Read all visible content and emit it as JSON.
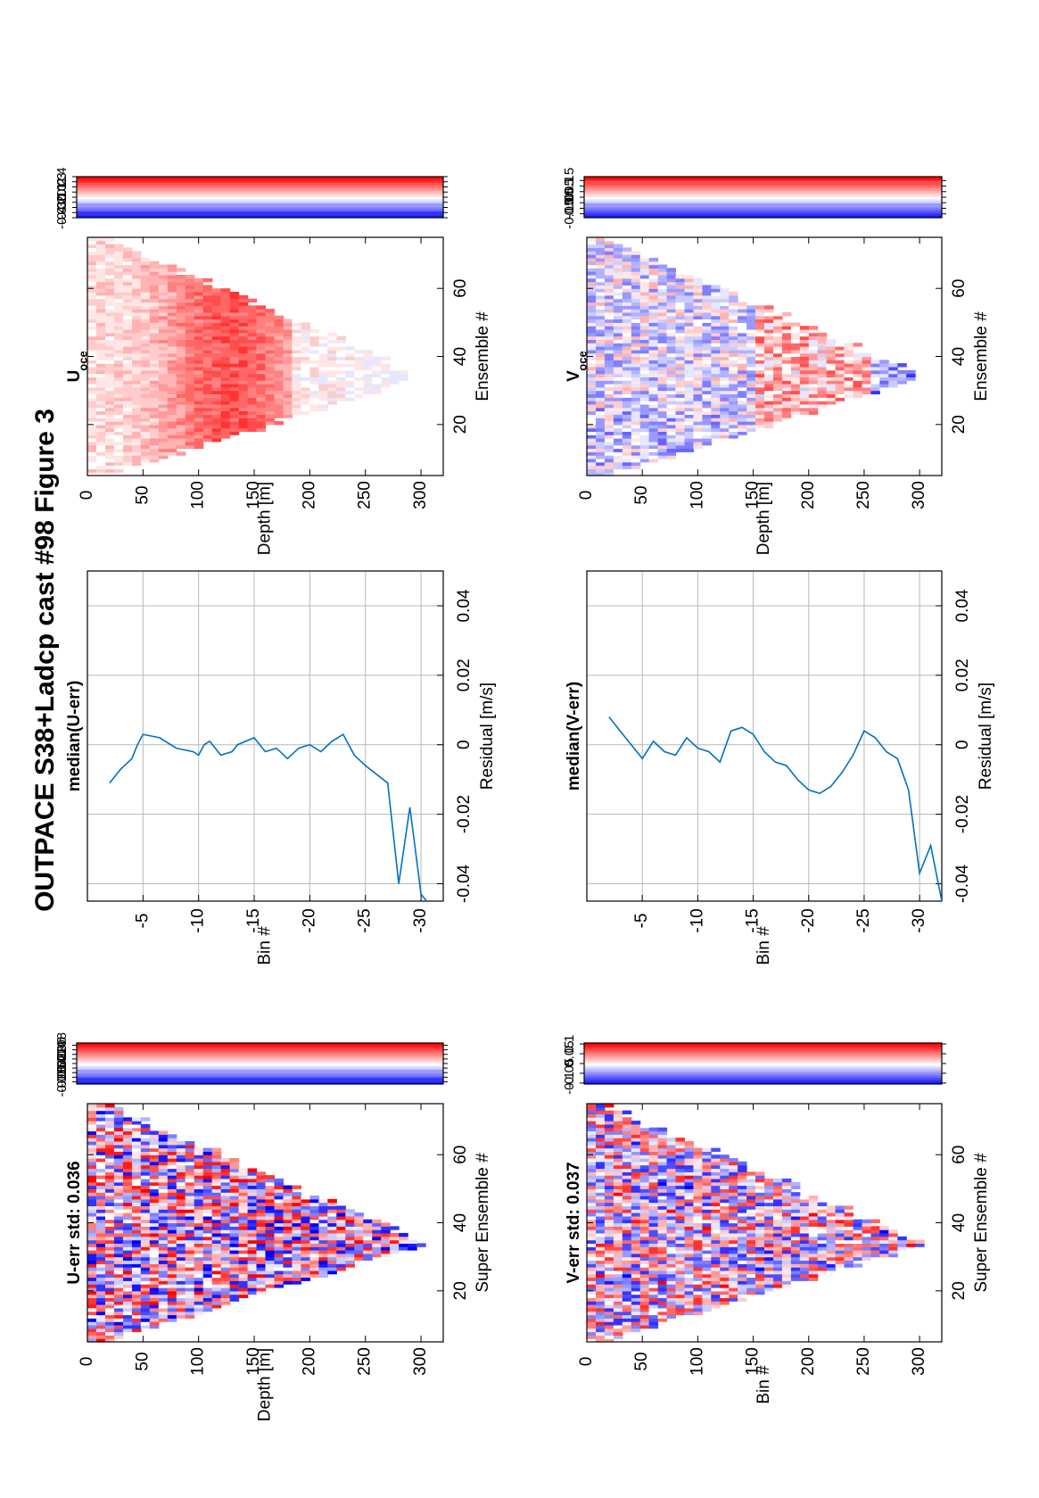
{
  "figure_title": "OUTPACE S38+Ladcp cast #98  Figure 3",
  "panels": {
    "u_err": {
      "title": "U-err std: 0.036",
      "xlabel": "Super Ensemble #",
      "ylabel": "Depth [m]"
    },
    "v_err": {
      "title": "V-err std: 0.037",
      "xlabel": "Super Ensemble #",
      "ylabel": "Bin #"
    },
    "u_med": {
      "title": "median(U-err)",
      "xlabel": "Residual [m/s]",
      "ylabel": "Bin #"
    },
    "v_med": {
      "title": "median(V-err)",
      "xlabel": "Residual [m/s]",
      "ylabel": "Bin #"
    },
    "u_oce": {
      "title": "U",
      "title_sub": "oce",
      "xlabel": "Ensemble #",
      "ylabel": "Depth [m]"
    },
    "v_oce": {
      "title": "V",
      "title_sub": "oce",
      "xlabel": "Ensemble #",
      "ylabel": "Depth [m]"
    }
  },
  "colorbars": {
    "u_err": {
      "ticks": [
        "0.08",
        "0.06",
        "0.04",
        "0.02",
        "0",
        "-0.02",
        "-0.04",
        "-0.06",
        "-0.08"
      ],
      "values": [
        0.08,
        0.06,
        0.04,
        0.02,
        0,
        -0.02,
        -0.04,
        -0.06,
        -0.08
      ],
      "lim": [
        -0.09,
        0.09
      ]
    },
    "v_err": {
      "ticks": [
        "0.1",
        "0.05",
        "0",
        "-0.05",
        "-0.1"
      ],
      "values": [
        0.1,
        0.05,
        0,
        -0.05,
        -0.1
      ],
      "lim": [
        -0.105,
        0.105
      ]
    },
    "u_oce": {
      "ticks": [
        "0.4",
        "0.3",
        "0.2",
        "0.1",
        "0",
        "-0.1",
        "-0.2",
        "-0.3",
        "-0.4"
      ],
      "values": [
        0.4,
        0.3,
        0.2,
        0.1,
        0,
        -0.1,
        -0.2,
        -0.3,
        -0.4
      ],
      "lim": [
        -0.4,
        0.4
      ]
    },
    "v_oce": {
      "ticks": [
        "0.15",
        "0.1",
        "0.05",
        "0",
        "-0.05",
        "-0.1",
        "-0.15"
      ],
      "values": [
        0.15,
        0.1,
        0.05,
        0,
        -0.05,
        -0.1,
        -0.15
      ],
      "lim": [
        -0.185,
        0.185
      ]
    }
  },
  "colors": {
    "positive": "#ff0000",
    "negative": "#0000ff",
    "line": "#0072bd"
  },
  "chart_data": [
    {
      "type": "heatmap",
      "title": "U-err std: 0.036",
      "xlabel": "Super Ensemble #",
      "ylabel": "Depth [m]",
      "xlim": [
        5,
        75
      ],
      "ylim": [
        0,
        320
      ],
      "xticks": [
        "20",
        "40",
        "60"
      ],
      "yticks": [
        "0",
        "50",
        "100",
        "150",
        "200",
        "250",
        "300"
      ],
      "clim": [
        -0.09,
        0.09
      ],
      "max_depth_profile": {
        "ensemble": [
          5,
          34,
          75
        ],
        "depth": [
          10,
          300,
          10
        ]
      }
    },
    {
      "type": "heatmap",
      "title": "V-err std: 0.037",
      "xlabel": "Super Ensemble #",
      "ylabel": "Bin #",
      "xlim": [
        5,
        75
      ],
      "ylim": [
        0,
        320
      ],
      "xticks": [
        "20",
        "40",
        "60"
      ],
      "yticks": [
        "0",
        "50",
        "100",
        "150",
        "200",
        "250",
        "300"
      ],
      "clim": [
        -0.105,
        0.105
      ],
      "max_depth_profile": {
        "ensemble": [
          5,
          34,
          75
        ],
        "depth": [
          10,
          300,
          10
        ]
      }
    },
    {
      "type": "line",
      "title": "median(U-err)",
      "xlabel": "Residual [m/s]",
      "ylabel": "Bin #",
      "xlim": [
        -0.045,
        0.05
      ],
      "ylim": [
        -32,
        0
      ],
      "xticks": [
        "-0.04",
        "-0.02",
        "0",
        "0.02",
        "0.04"
      ],
      "yticks": [
        "-5",
        "-10",
        "-15",
        "-20",
        "-25",
        "-30"
      ],
      "grid": true,
      "series": [
        {
          "residual": [
            -0.011,
            -0.007,
            -0.004,
            0.0,
            0.003,
            0.002,
            -0.001,
            -0.002,
            -0.003,
            0.0,
            0.001,
            -0.001,
            -0.003,
            -0.002,
            0.0,
            0.002,
            0.0,
            -0.002,
            -0.001,
            -0.004,
            -0.001,
            0.0,
            -0.002,
            0.001,
            0.003,
            -0.003,
            -0.006,
            -0.011,
            -0.04,
            -0.018,
            -0.043,
            -0.047
          ],
          "bin": [
            -2,
            -3,
            -4,
            -4.5,
            -5,
            -6.5,
            -8,
            -9.5,
            -10,
            -10.5,
            -11,
            -11.5,
            -12,
            -13,
            -13.5,
            -15,
            -15.5,
            -16,
            -17,
            -18,
            -19,
            -20,
            -21,
            -22,
            -23,
            -24,
            -25,
            -27,
            -28,
            -29,
            -30,
            -31
          ]
        }
      ]
    },
    {
      "type": "line",
      "title": "median(V-err)",
      "xlabel": "Residual [m/s]",
      "ylabel": "Bin #",
      "xlim": [
        -0.045,
        0.05
      ],
      "ylim": [
        -32,
        0
      ],
      "xticks": [
        "-0.04",
        "-0.02",
        "0",
        "0.02",
        "0.04"
      ],
      "yticks": [
        "-5",
        "-10",
        "-15",
        "-20",
        "-25",
        "-30"
      ],
      "grid": true,
      "series": [
        {
          "residual": [
            0.008,
            0.004,
            0.0,
            -0.004,
            0.001,
            -0.002,
            -0.003,
            0.002,
            -0.001,
            -0.002,
            -0.005,
            0.004,
            0.005,
            0.003,
            -0.002,
            -0.005,
            -0.006,
            -0.01,
            -0.013,
            -0.014,
            -0.012,
            -0.008,
            -0.003,
            0.004,
            0.002,
            -0.002,
            -0.004,
            -0.013,
            -0.037,
            -0.029,
            -0.045,
            -0.048
          ],
          "bin": [
            -2,
            -3,
            -4,
            -5,
            -6,
            -7,
            -8,
            -9,
            -10,
            -11,
            -12,
            -13,
            -14,
            -15,
            -16,
            -17,
            -18,
            -19,
            -20,
            -21,
            -22,
            -23,
            -24,
            -25,
            -26,
            -27,
            -28,
            -29,
            -30,
            -31,
            -32,
            -33
          ]
        }
      ]
    },
    {
      "type": "heatmap",
      "title": "U oce",
      "xlabel": "Ensemble #",
      "ylabel": "Depth [m]",
      "xlim": [
        5,
        75
      ],
      "ylim": [
        0,
        320
      ],
      "xticks": [
        "20",
        "40",
        "60"
      ],
      "yticks": [
        "0",
        "50",
        "100",
        "150",
        "200",
        "250",
        "300"
      ],
      "clim": [
        -0.4,
        0.4
      ],
      "max_depth_profile": {
        "ensemble": [
          5,
          34,
          75
        ],
        "depth": [
          10,
          300,
          10
        ]
      }
    },
    {
      "type": "heatmap",
      "title": "V oce",
      "xlabel": "Ensemble #",
      "ylabel": "Depth [m]",
      "xlim": [
        5,
        75
      ],
      "ylim": [
        0,
        320
      ],
      "xticks": [
        "20",
        "40",
        "60"
      ],
      "yticks": [
        "0",
        "50",
        "100",
        "150",
        "200",
        "250",
        "300"
      ],
      "clim": [
        -0.185,
        0.185
      ],
      "max_depth_profile": {
        "ensemble": [
          5,
          34,
          75
        ],
        "depth": [
          10,
          300,
          10
        ]
      }
    }
  ]
}
